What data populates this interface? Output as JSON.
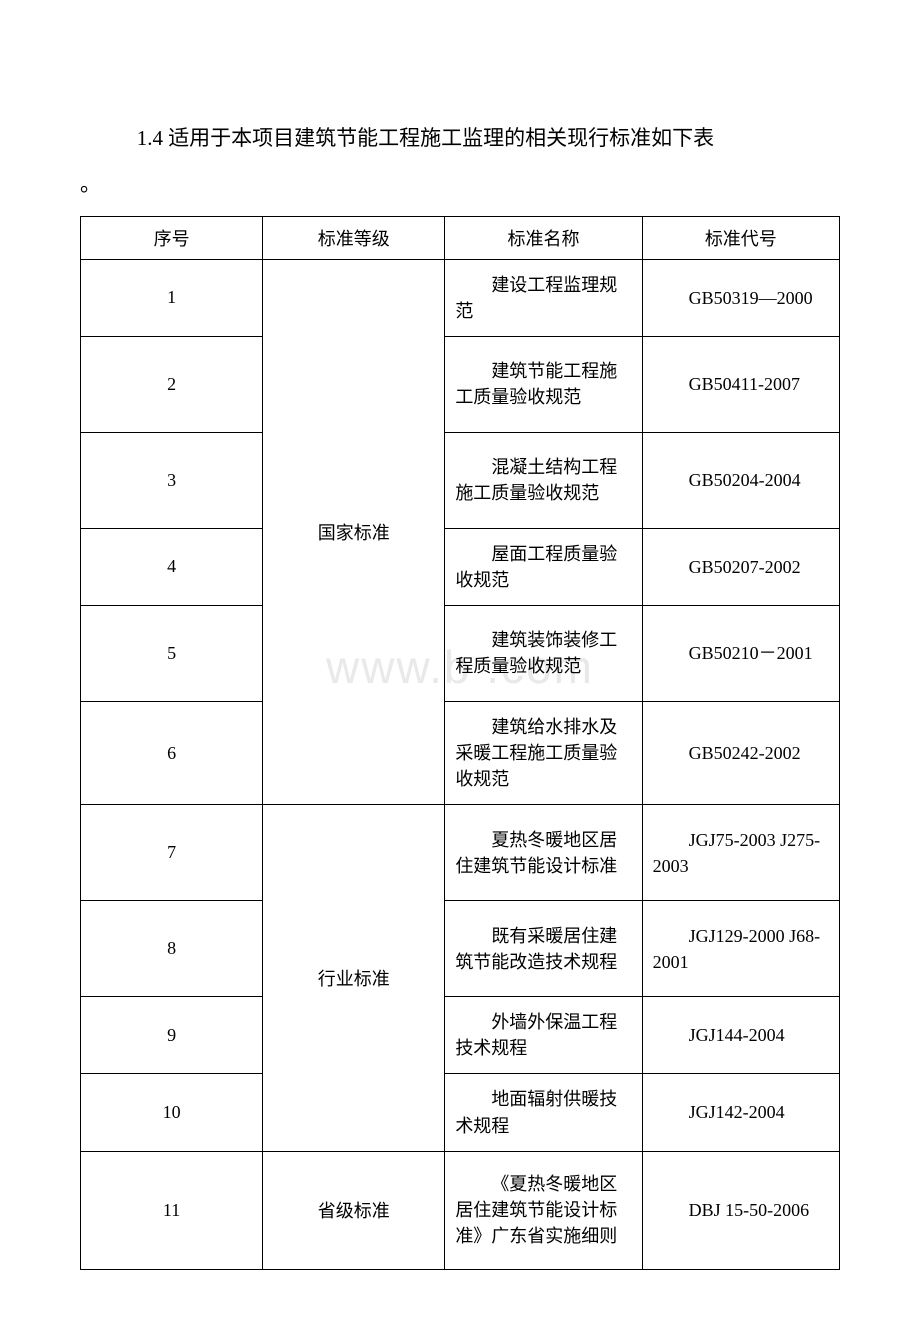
{
  "intro": "1.4 适用于本项目建筑节能工程施工监理的相关现行标准如下表",
  "period": "。",
  "watermark": "www.b         .com",
  "table": {
    "headers": [
      "序号",
      "标准等级",
      "标准名称",
      "标准代号"
    ],
    "groups": [
      {
        "level": "国家标准",
        "rows": [
          {
            "seq": "1",
            "name": "建设工程监理规范",
            "code": "GB50319—2000"
          },
          {
            "seq": "2",
            "name": "建筑节能工程施工质量验收规范",
            "code": "GB50411-2007"
          },
          {
            "seq": "3",
            "name": "混凝土结构工程施工质量验收规范",
            "code": "GB50204-2004"
          },
          {
            "seq": "4",
            "name": "屋面工程质量验收规范",
            "code": "GB50207-2002"
          },
          {
            "seq": "5",
            "name": "建筑装饰装修工程质量验收规范",
            "code": "GB50210－2001"
          },
          {
            "seq": "6",
            "name": "建筑给水排水及采暖工程施工质量验收规范",
            "code": "GB50242-2002"
          }
        ]
      },
      {
        "level": "行业标准",
        "rows": [
          {
            "seq": "7",
            "name": "夏热冬暖地区居住建筑节能设计标准",
            "code": "JGJ75-2003 J275-2003"
          },
          {
            "seq": "8",
            "name": "既有采暖居住建筑节能改造技术规程",
            "code": "JGJ129-2000 J68-2001"
          },
          {
            "seq": "9",
            "name": "外墙外保温工程技术规程",
            "code": "JGJ144-2004"
          },
          {
            "seq": "10",
            "name": "地面辐射供暖技术规程",
            "code": "JGJ142-2004"
          }
        ]
      },
      {
        "level": "省级标准",
        "rows": [
          {
            "seq": "11",
            "name": "《夏热冬暖地区居住建筑节能设计标准》广东省实施细则",
            "code": "DBJ 15-50-2006"
          }
        ]
      }
    ]
  }
}
